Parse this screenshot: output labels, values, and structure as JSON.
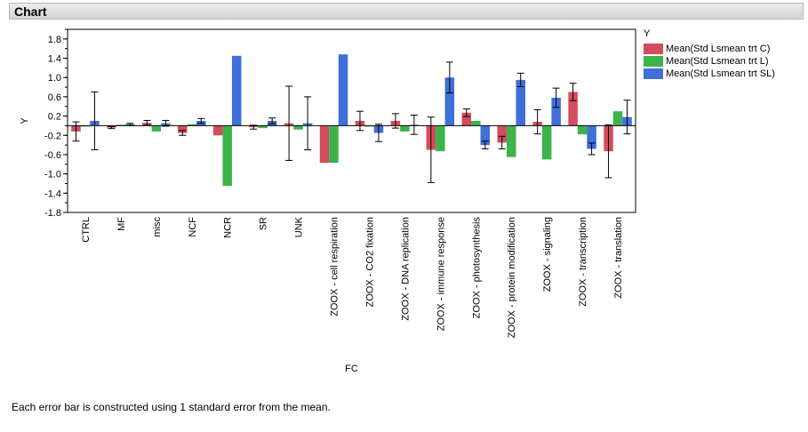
{
  "header": {
    "title": "Chart"
  },
  "footnote": "Each error bar is constructed using 1 standard error from the mean.",
  "colors": {
    "C": "#d44c5e",
    "L": "#3cb44b",
    "SL": "#3f6fd9",
    "axis": "#000000"
  },
  "chart_data": {
    "type": "bar",
    "xlabel": "FC",
    "ylabel": "Y",
    "ylim": [
      -1.8,
      2.0
    ],
    "yticks": [
      "1.8",
      "1.4",
      "1.0",
      "0.6",
      "0.2",
      "-0.2",
      "-0.6",
      "-1.0",
      "-1.4",
      "-1.8"
    ],
    "legend": {
      "title": "Y",
      "placement": "right"
    },
    "categories": [
      "CTRL",
      "MF",
      "misc",
      "NCF",
      "NCR",
      "SR",
      "UNK",
      "ZOOX - cell respiration",
      "ZOOX - CO2 fixation",
      "ZOOX - DNA replication",
      "ZOOX - immune response",
      "ZOOX - photosynthesis",
      "ZOOX - protein modification",
      "ZOOX - signaling",
      "ZOOX - transcription",
      "ZOOX - translation"
    ],
    "series": [
      {
        "name": "Mean(Std Lsmean trt C)",
        "values": [
          -0.12,
          -0.04,
          0.06,
          -0.15,
          -0.2,
          -0.03,
          0.05,
          -0.77,
          0.1,
          0.1,
          -0.5,
          0.27,
          -0.35,
          0.08,
          0.7,
          -0.53
        ],
        "errors": [
          0.2,
          0.02,
          0.05,
          0.05,
          0.0,
          0.04,
          0.77,
          0.0,
          0.2,
          0.15,
          0.68,
          0.08,
          0.13,
          0.25,
          0.18,
          0.55
        ]
      },
      {
        "name": "Mean(Std Lsmean trt L)",
        "values": [
          0.0,
          0.02,
          -0.12,
          0.03,
          -1.25,
          -0.05,
          -0.08,
          -0.77,
          0.0,
          -0.12,
          -0.53,
          0.1,
          -0.65,
          -0.7,
          -0.18,
          0.3
        ]
      },
      {
        "name": "Mean(Std Lsmean trt SL)",
        "values": [
          0.1,
          0.03,
          0.05,
          0.1,
          1.45,
          0.1,
          0.05,
          1.48,
          -0.15,
          0.02,
          1.0,
          -0.4,
          0.95,
          0.58,
          -0.48,
          0.18
        ],
        "errors": [
          0.6,
          0.02,
          0.06,
          0.05,
          0.0,
          0.06,
          0.55,
          0.0,
          0.18,
          0.2,
          0.32,
          0.08,
          0.14,
          0.2,
          0.12,
          0.35
        ]
      }
    ],
    "grid": false
  }
}
